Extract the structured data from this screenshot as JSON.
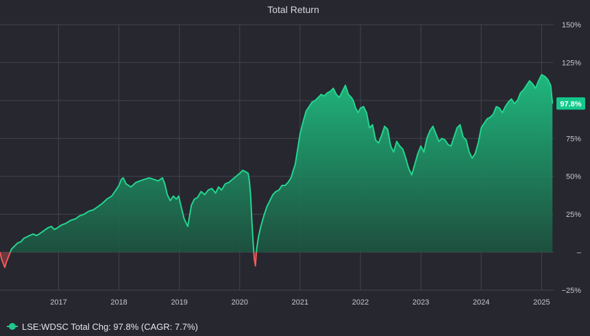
{
  "colors": {
    "background": "#272730",
    "grid": "#44444e",
    "text": "#c8c8d0",
    "title": "#d8d8de",
    "positive_line": "#22d68f",
    "positive_fill_top": "#1fbf82",
    "positive_fill_bottom": "#1c4a3a",
    "negative_line": "#f05a5a",
    "last_value_badge_bg": "#14c98b",
    "last_value_badge_text": "#ffffff"
  },
  "legend": {
    "name": "LSE:WDSC Total Chg: ",
    "value": "97.8%",
    "cagr": " (CAGR: 7.7%)"
  },
  "chart_data": {
    "type": "area",
    "title": "Total Return",
    "xlabel": "",
    "ylabel": "",
    "ylim": [
      -25,
      150
    ],
    "y_ticks": [
      "150%",
      "125%",
      "100%",
      "75%",
      "50%",
      "25%",
      "–",
      "−25%"
    ],
    "y_tick_values": [
      150,
      125,
      100,
      75,
      50,
      25,
      0,
      -25
    ],
    "x_ticks": [
      "2017",
      "2018",
      "2019",
      "2020",
      "2021",
      "2022",
      "2023",
      "2024",
      "2025"
    ],
    "x_tick_values": [
      2017.0,
      2018.0,
      2019.0,
      2020.0,
      2021.0,
      2022.0,
      2023.0,
      2024.0,
      2025.0
    ],
    "xlim": [
      2016.03,
      2025.2
    ],
    "grid": true,
    "last_value_label": "97.8%",
    "series": [
      {
        "name": "LSE:WDSC",
        "x": [
          2016.03,
          2016.06,
          2016.09,
          2016.11,
          2016.14,
          2016.18,
          2016.22,
          2016.27,
          2016.32,
          2016.38,
          2016.42,
          2016.47,
          2016.52,
          2016.58,
          2016.63,
          2016.68,
          2016.75,
          2016.82,
          2016.88,
          2016.93,
          2016.98,
          2017.05,
          2017.12,
          2017.2,
          2017.28,
          2017.35,
          2017.42,
          2017.5,
          2017.58,
          2017.65,
          2017.72,
          2017.8,
          2017.88,
          2017.95,
          2018.0,
          2018.04,
          2018.07,
          2018.12,
          2018.2,
          2018.28,
          2018.35,
          2018.42,
          2018.5,
          2018.58,
          2018.65,
          2018.72,
          2018.76,
          2018.8,
          2018.85,
          2018.9,
          2018.95,
          2018.99,
          2019.03,
          2019.08,
          2019.14,
          2019.2,
          2019.25,
          2019.3,
          2019.36,
          2019.42,
          2019.48,
          2019.54,
          2019.6,
          2019.65,
          2019.7,
          2019.76,
          2019.82,
          2019.88,
          2019.94,
          2020.0,
          2020.05,
          2020.1,
          2020.14,
          2020.16,
          2020.18,
          2020.2,
          2020.22,
          2020.24,
          2020.26,
          2020.28,
          2020.31,
          2020.35,
          2020.4,
          2020.45,
          2020.5,
          2020.55,
          2020.6,
          2020.65,
          2020.7,
          2020.75,
          2020.8,
          2020.85,
          2020.88,
          2020.92,
          2020.96,
          2021.0,
          2021.05,
          2021.1,
          2021.15,
          2021.2,
          2021.25,
          2021.3,
          2021.35,
          2021.4,
          2021.45,
          2021.5,
          2021.55,
          2021.6,
          2021.65,
          2021.7,
          2021.75,
          2021.8,
          2021.85,
          2021.88,
          2021.92,
          2021.96,
          2022.0,
          2022.05,
          2022.1,
          2022.15,
          2022.2,
          2022.25,
          2022.3,
          2022.35,
          2022.4,
          2022.45,
          2022.5,
          2022.55,
          2022.6,
          2022.65,
          2022.7,
          2022.75,
          2022.8,
          2022.85,
          2022.9,
          2022.95,
          2023.0,
          2023.05,
          2023.1,
          2023.15,
          2023.2,
          2023.25,
          2023.3,
          2023.35,
          2023.4,
          2023.45,
          2023.5,
          2023.55,
          2023.6,
          2023.65,
          2023.7,
          2023.75,
          2023.8,
          2023.85,
          2023.9,
          2023.95,
          2024.0,
          2024.05,
          2024.1,
          2024.15,
          2024.2,
          2024.25,
          2024.3,
          2024.35,
          2024.4,
          2024.45,
          2024.5,
          2024.55,
          2024.6,
          2024.65,
          2024.7,
          2024.75,
          2024.8,
          2024.85,
          2024.9,
          2024.95,
          2025.0,
          2025.05,
          2025.1,
          2025.15,
          2025.18
        ],
        "values": [
          0,
          -5,
          -8,
          -10,
          -6,
          -2,
          2,
          4,
          6,
          7,
          9,
          10,
          11,
          12,
          11,
          12,
          14,
          16,
          17,
          15,
          16,
          18,
          19,
          21,
          22,
          24,
          25,
          27,
          28,
          30,
          32,
          35,
          37,
          41,
          44,
          48,
          49,
          45,
          43,
          46,
          47,
          48,
          49,
          48,
          47,
          49,
          45,
          38,
          34,
          37,
          35,
          37,
          30,
          22,
          17,
          31,
          35,
          36,
          40,
          38,
          41,
          42,
          39,
          43,
          41,
          45,
          46,
          48,
          50,
          52,
          54,
          53,
          52,
          47,
          38,
          22,
          8,
          -4,
          -9,
          2,
          10,
          17,
          24,
          30,
          34,
          38,
          40,
          41,
          44,
          44,
          46,
          49,
          53,
          58,
          68,
          78,
          86,
          93,
          96,
          99,
          100,
          102,
          104,
          103,
          105,
          106,
          108,
          104,
          102,
          106,
          110,
          104,
          102,
          100,
          95,
          92,
          95,
          96,
          92,
          82,
          84,
          74,
          72,
          77,
          83,
          81,
          70,
          66,
          73,
          70,
          68,
          62,
          55,
          51,
          58,
          65,
          70,
          66,
          75,
          80,
          83,
          78,
          73,
          75,
          74,
          71,
          70,
          76,
          82,
          84,
          76,
          74,
          66,
          62,
          65,
          72,
          82,
          85,
          88,
          89,
          91,
          96,
          95,
          92,
          96,
          99,
          101,
          98,
          100,
          105,
          107,
          110,
          113,
          111,
          108,
          113,
          117,
          116,
          114,
          110,
          98
        ]
      }
    ]
  }
}
